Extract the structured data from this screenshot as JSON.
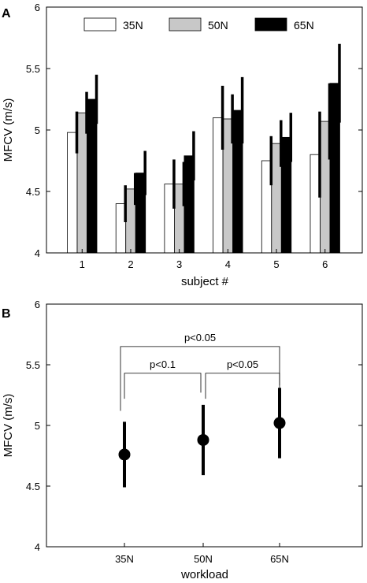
{
  "chart_data": [
    {
      "panel_label": "A",
      "type": "bar",
      "xlabel": "subject #",
      "ylabel": "MFCV (m/s)",
      "ylim": [
        4,
        6
      ],
      "yticks": [
        4,
        4.5,
        5,
        5.5,
        6
      ],
      "categories": [
        "1",
        "2",
        "3",
        "4",
        "5",
        "6"
      ],
      "legend_position": "top",
      "series": [
        {
          "name": "35N",
          "color": "#ffffff",
          "values": [
            4.98,
            4.4,
            4.56,
            5.1,
            4.75,
            4.8
          ],
          "error": [
            0.17,
            0.15,
            0.2,
            0.26,
            0.2,
            0.35
          ]
        },
        {
          "name": "50N",
          "color": "#c8c8c8",
          "values": [
            5.14,
            4.52,
            4.56,
            5.09,
            4.89,
            5.07
          ],
          "error": [
            0.17,
            0.13,
            0.18,
            0.2,
            0.19,
            0.31
          ]
        },
        {
          "name": "65N",
          "color": "#000000",
          "values": [
            5.25,
            4.65,
            4.79,
            5.16,
            4.94,
            5.38
          ],
          "error": [
            0.2,
            0.18,
            0.2,
            0.27,
            0.2,
            0.32
          ]
        }
      ]
    },
    {
      "panel_label": "B",
      "type": "scatter",
      "xlabel": "workload",
      "ylabel": "MFCV (m/s)",
      "ylim": [
        4,
        6
      ],
      "yticks": [
        4,
        4.5,
        5,
        5.5,
        6
      ],
      "categories": [
        "35N",
        "50N",
        "65N"
      ],
      "values": [
        4.76,
        4.88,
        5.02
      ],
      "error": [
        0.27,
        0.29,
        0.29
      ],
      "annotations": [
        {
          "from": 0,
          "to": 2,
          "text": "p<0.05",
          "level": 5.65
        },
        {
          "from": 0,
          "to": 1,
          "text": "p<0.1",
          "level": 5.43
        },
        {
          "from": 1,
          "to": 2,
          "text": "p<0.05",
          "level": 5.43
        }
      ]
    }
  ]
}
